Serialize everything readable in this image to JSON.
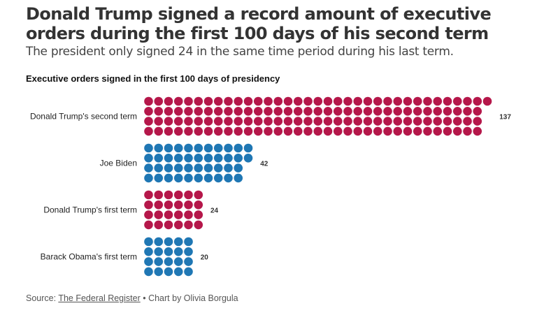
{
  "title": "Donald Trump signed a record amount of executive orders during the first 100 days of his second term",
  "subtitle": "The president only signed 24 in the same time period during his last term.",
  "source": {
    "prefix": "Source: ",
    "link": "The Federal Register",
    "suffix": " • Chart by Olivia Borgula"
  },
  "chart_data": {
    "type": "pictogram-dot",
    "title": "Executive orders signed in the first 100 days of presidency",
    "categories": [
      "Donald Trump's second term",
      "Joe Biden",
      "Donald Trump's first term",
      "Barack Obama's first term"
    ],
    "values": [
      137,
      42,
      24,
      20
    ],
    "value_labels": [
      "137",
      "42",
      "24",
      "20"
    ],
    "colors": [
      "#b5174a",
      "#1f77b4",
      "#b5174a",
      "#1f77b4"
    ],
    "rows_per_group": 4
  }
}
